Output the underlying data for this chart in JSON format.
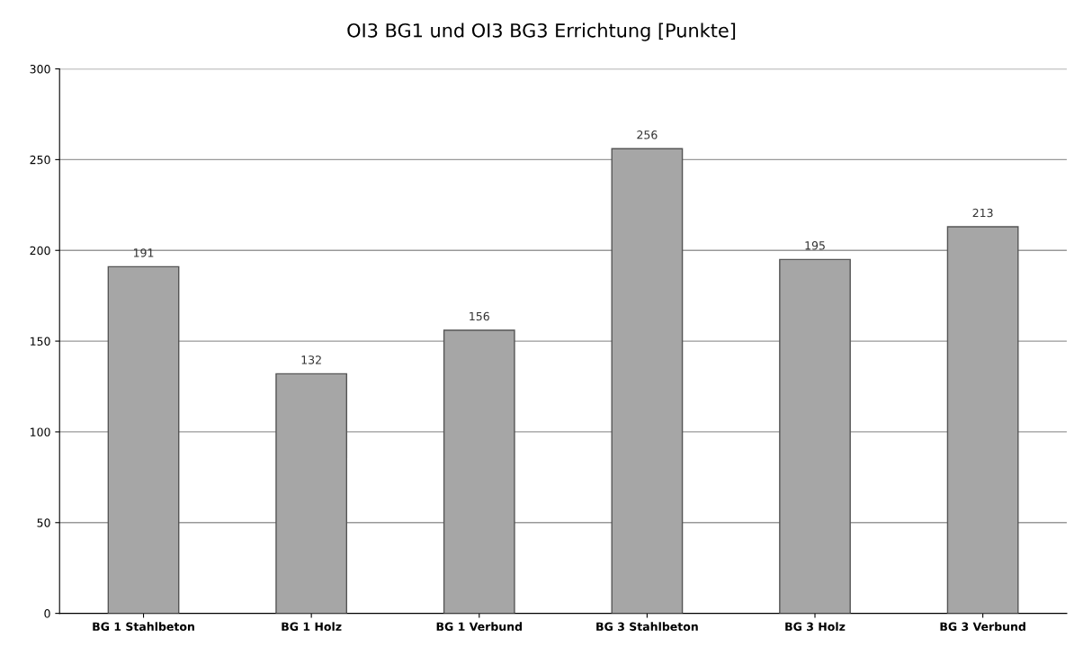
{
  "chart_data": {
    "type": "bar",
    "title": "OI3 BG1 und OI3 BG3 Errichtung [Punkte]",
    "categories": [
      "BG 1 Stahlbeton",
      "BG 1 Holz",
      "BG 1 Verbund",
      "BG 3 Stahlbeton",
      "BG 3 Holz",
      "BG 3 Verbund"
    ],
    "values": [
      191,
      132,
      156,
      256,
      195,
      213
    ],
    "color": "#a6a6a6",
    "ylim": [
      0,
      300
    ],
    "yticks": [
      0,
      50,
      100,
      150,
      200,
      250,
      300
    ],
    "grid": "y",
    "data_labels": true
  }
}
